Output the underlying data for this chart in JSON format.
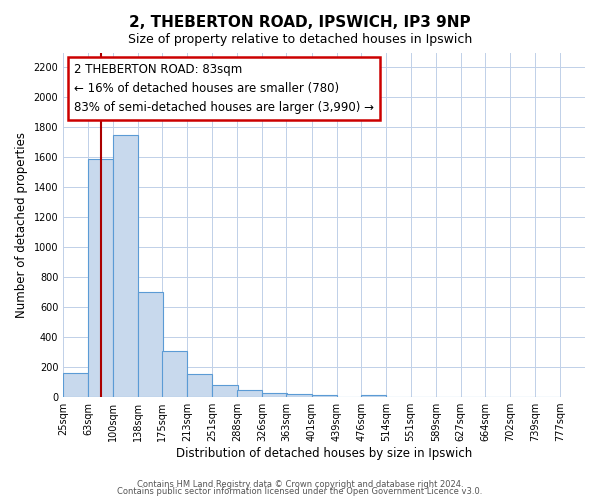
{
  "title": "2, THEBERTON ROAD, IPSWICH, IP3 9NP",
  "subtitle": "Size of property relative to detached houses in Ipswich",
  "xlabel": "Distribution of detached houses by size in Ipswich",
  "ylabel": "Number of detached properties",
  "bar_edges": [
    25,
    63,
    100,
    138,
    175,
    213,
    251,
    288,
    326,
    363,
    401,
    439,
    476,
    514,
    551,
    589,
    627,
    664,
    702,
    739,
    777
  ],
  "bar_heights": [
    160,
    1590,
    1750,
    700,
    310,
    155,
    80,
    50,
    30,
    20,
    15,
    0,
    15,
    0,
    0,
    0,
    0,
    0,
    0,
    0
  ],
  "bar_color": "#c8d9ed",
  "bar_edge_color": "#5b9bd5",
  "vline_x": 83,
  "vline_color": "#aa0000",
  "annotation_title": "2 THEBERTON ROAD: 83sqm",
  "annotation_line1": "← 16% of detached houses are smaller (780)",
  "annotation_line2": "83% of semi-detached houses are larger (3,990) →",
  "annotation_box_color": "#ffffff",
  "annotation_box_edge": "#cc0000",
  "ylim": [
    0,
    2300
  ],
  "yticks": [
    0,
    200,
    400,
    600,
    800,
    1000,
    1200,
    1400,
    1600,
    1800,
    2000,
    2200
  ],
  "tick_labels": [
    "25sqm",
    "63sqm",
    "100sqm",
    "138sqm",
    "175sqm",
    "213sqm",
    "251sqm",
    "288sqm",
    "326sqm",
    "363sqm",
    "401sqm",
    "439sqm",
    "476sqm",
    "514sqm",
    "551sqm",
    "589sqm",
    "627sqm",
    "664sqm",
    "702sqm",
    "739sqm",
    "777sqm"
  ],
  "footer1": "Contains HM Land Registry data © Crown copyright and database right 2024.",
  "footer2": "Contains public sector information licensed under the Open Government Licence v3.0.",
  "bg_color": "#ffffff",
  "grid_color": "#c0d0e8",
  "title_fontsize": 11,
  "subtitle_fontsize": 9,
  "axis_label_fontsize": 8.5,
  "tick_fontsize": 7,
  "footer_fontsize": 6,
  "annotation_fontsize": 8.5
}
